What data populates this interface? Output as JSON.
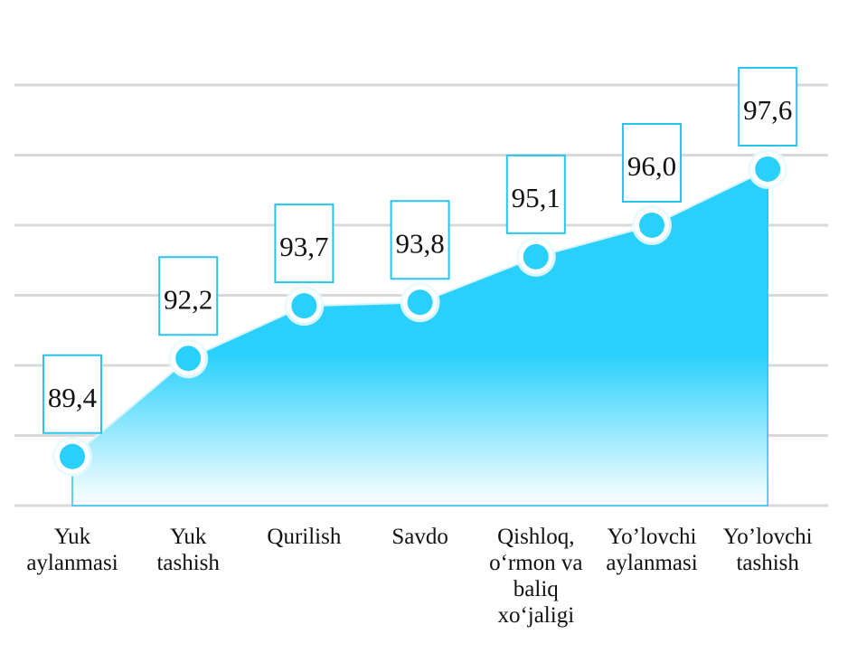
{
  "chart_data": {
    "type": "area",
    "title": "",
    "xlabel": "",
    "ylabel": "",
    "categories": [
      "Yuk\naylanmasi",
      "Yuk\ntashish",
      "Qurilish",
      "Savdo",
      "Qishloq,\no‘rmon va\nbaliq\nxo‘jaligi",
      "Yo’lovchi\naylanmasi",
      "Yo’lovchi\ntashish"
    ],
    "series": [
      {
        "values": [
          89.4,
          92.2,
          93.7,
          93.8,
          95.1,
          96.0,
          97.6
        ]
      }
    ],
    "value_labels": [
      "89,4",
      "92,2",
      "93,7",
      "93,8",
      "95,1",
      "96,0",
      "97,6"
    ],
    "ylim": [
      88,
      100
    ],
    "grid": true,
    "legend": "none",
    "colors": {
      "fill_top": "#29d0fb",
      "fill_bottom": "#ffffff",
      "line": "#29c4ee",
      "marker": "#29d0fb",
      "label_border": "#29c4ee",
      "grid": "#d9d9d9"
    }
  }
}
